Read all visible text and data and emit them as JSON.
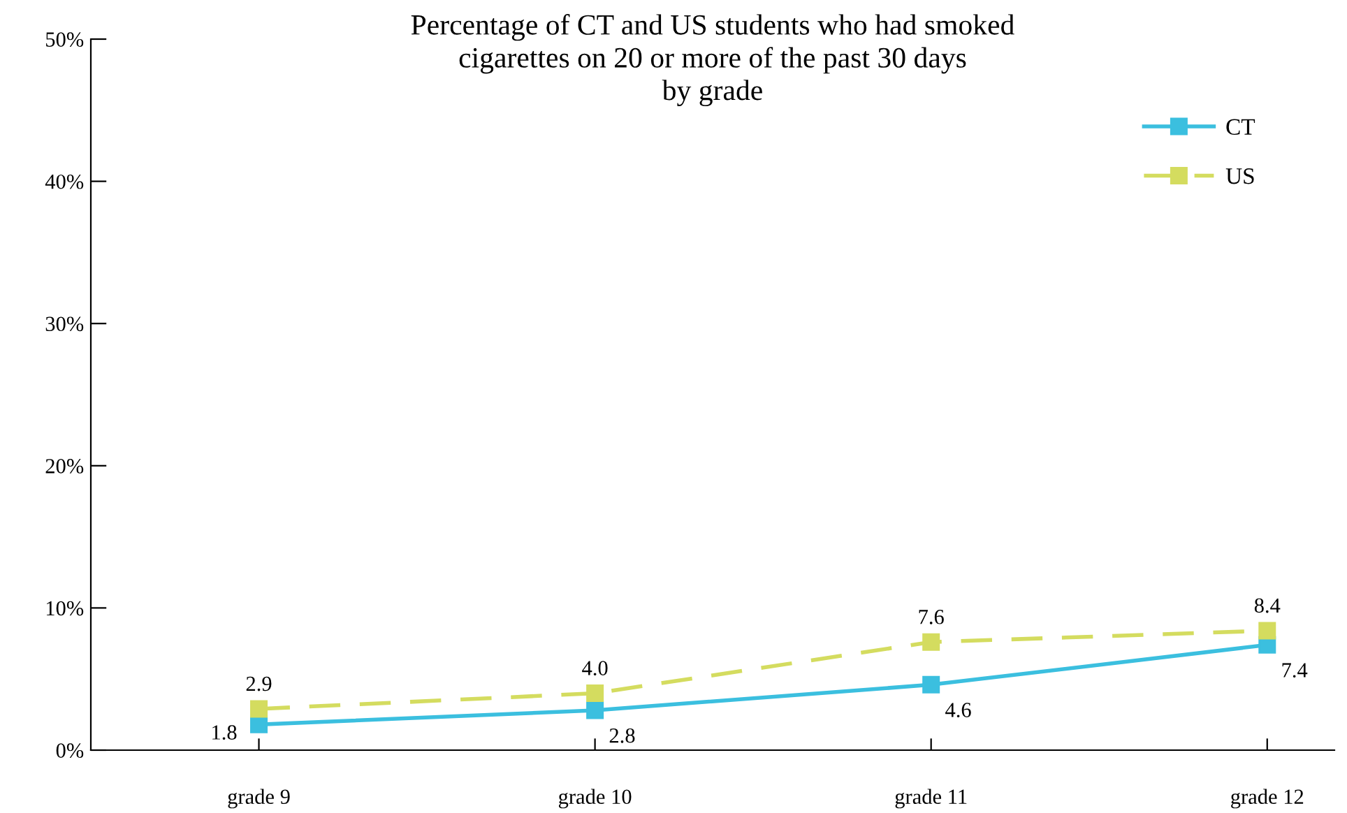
{
  "chart_data": {
    "type": "line",
    "title": "Percentage of CT and US students who had smoked\ncigarettes on 20 or more of the past 30 days\nby grade",
    "categories": [
      "grade 9",
      "grade 10",
      "grade 11",
      "grade 12"
    ],
    "series": [
      {
        "name": "CT",
        "color": "#3bbfdf",
        "values": [
          1.8,
          2.8,
          4.6,
          7.4
        ],
        "value_labels": [
          "1.8",
          "2.8",
          "4.6",
          "7.4"
        ],
        "line_style": "solid"
      },
      {
        "name": "US",
        "color": "#d4dc5f",
        "values": [
          2.9,
          4.0,
          7.6,
          8.4
        ],
        "value_labels": [
          "2.9",
          "4.0",
          "7.6",
          "8.4"
        ],
        "line_style": "dashed"
      }
    ],
    "ylim": [
      0,
      50
    ],
    "yticks": [
      {
        "value": 0,
        "label": "0%"
      },
      {
        "value": 10,
        "label": "10%"
      },
      {
        "value": 20,
        "label": "20%"
      },
      {
        "value": 30,
        "label": "30%"
      },
      {
        "value": 40,
        "label": "40%"
      },
      {
        "value": 50,
        "label": "50%"
      }
    ],
    "marker": "square",
    "legend": "top right",
    "grid": false
  }
}
